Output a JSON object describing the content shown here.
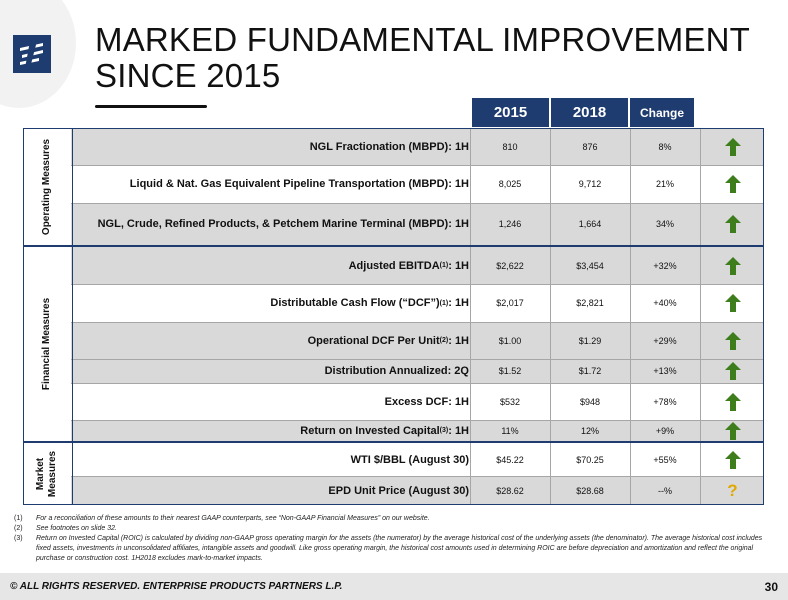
{
  "title_line1": "MARKED FUNDAMENTAL IMPROVEMENT",
  "title_line2": "SINCE 2015",
  "headers": {
    "y1": "2015",
    "y2": "2018",
    "change": "Change"
  },
  "sections": {
    "operating": "Operating Measures",
    "financial": "Financial Measures",
    "market_line1": "Market",
    "market_line2": "Measures"
  },
  "rows": [
    {
      "metric": "NGL Fractionation (MBPD):  1H",
      "v2015": "810",
      "v2018": "876",
      "change": "8%",
      "icon": "up-arrow"
    },
    {
      "metric": "Liquid & Nat. Gas Equivalent Pipeline Transportation (MBPD): 1H",
      "v2015": "8,025",
      "v2018": "9,712",
      "change": "21%",
      "icon": "up-arrow"
    },
    {
      "metric": "NGL, Crude, Refined Products, & Petchem Marine Terminal (MBPD): 1H",
      "v2015": "1,246",
      "v2018": "1,664",
      "change": "34%",
      "icon": "up-arrow"
    },
    {
      "metric_pre": "Adjusted EBITDA ",
      "sup": "(1)",
      "metric_post": ": 1H",
      "v2015": "$2,622",
      "v2018": "$3,454",
      "change": "+32%",
      "icon": "up-arrow"
    },
    {
      "metric_pre": "Distributable Cash Flow (“DCF”)",
      "sup": "(1)",
      "metric_post": ": 1H",
      "v2015": "$2,017",
      "v2018": "$2,821",
      "change": "+40%",
      "icon": "up-arrow"
    },
    {
      "metric_pre": "Operational DCF Per Unit",
      "sup": "(2)",
      "metric_post": ":  1H",
      "v2015": "$1.00",
      "v2018": "$1.29",
      "change": "+29%",
      "icon": "up-arrow"
    },
    {
      "metric": "Distribution Annualized:  2Q",
      "v2015": "$1.52",
      "v2018": "$1.72",
      "change": "+13%",
      "icon": "up-arrow"
    },
    {
      "metric": "Excess DCF: 1H",
      "v2015": "$532",
      "v2018": "$948",
      "change": "+78%",
      "icon": "up-arrow"
    },
    {
      "metric_pre": "Return on Invested Capital",
      "sup": "(3)",
      "metric_post": ":  1H",
      "v2015": "11%",
      "v2018": "12%",
      "change": "+9%",
      "icon": "up-arrow"
    },
    {
      "metric": "WTI $/BBL (August 30)",
      "v2015": "$45.22",
      "v2018": "$70.25",
      "change": "+55%",
      "icon": "up-arrow"
    },
    {
      "metric": "EPD Unit Price (August 30)",
      "v2015": "$28.62",
      "v2018": "$28.68",
      "change": "--%",
      "icon": "question-mark",
      "icon_text": "?"
    }
  ],
  "footnotes": [
    {
      "n": "(1)",
      "text": "For a reconciliation of these amounts to their nearest GAAP counterparts, see “Non-GAAP Financial Measures” on our website."
    },
    {
      "n": "(2)",
      "text": "See footnotes on slide 32."
    },
    {
      "n": "(3)",
      "text": "Return on Invested Capital (ROIC) is calculated by dividing non-GAAP gross operating margin for the assets (the numerator) by the average historical cost of the underlying assets (the denominator). The average historical cost includes fixed assets, investments in unconsolidated affiliates, intangible assets and goodwill. Like gross operating margin, the historical cost amounts used in determining ROIC are before depreciation and amortization and reflect the original purchase or construction cost. 1H2018 excludes mark-to-market impacts."
    }
  ],
  "footer": {
    "copyright": "© ALL RIGHTS RESERVED. ENTERPRISE PRODUCTS PARTNERS L.P.",
    "page": "30"
  },
  "colors": {
    "navy": "#1f3c70",
    "row_gray": "#d9d9d9",
    "arrow_green": "#3e7d1c",
    "question_gold": "#e0a900"
  }
}
